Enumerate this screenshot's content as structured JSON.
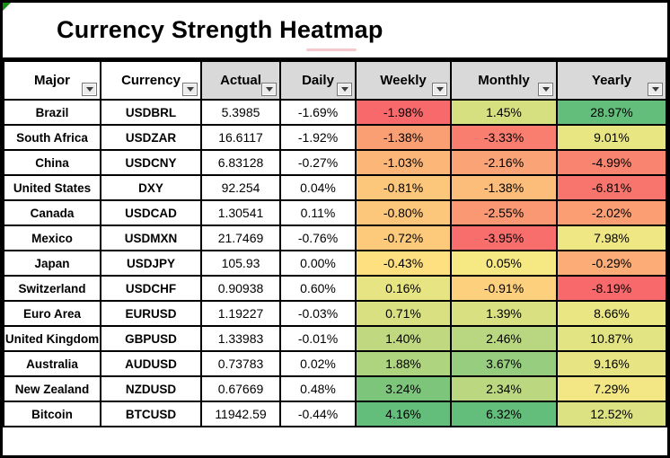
{
  "title": "Currency Strength Heatmap",
  "header": {
    "columns": [
      {
        "label": "Major",
        "bg": "#ffffff"
      },
      {
        "label": "Currency",
        "bg": "#ffffff"
      },
      {
        "label": "Actual",
        "bg": "#d9d9d9"
      },
      {
        "label": "Daily",
        "bg": "#d9d9d9"
      },
      {
        "label": "Weekly",
        "bg": "#d9d9d9"
      },
      {
        "label": "Monthly",
        "bg": "#d9d9d9"
      },
      {
        "label": "Yearly",
        "bg": "#d9d9d9"
      }
    ]
  },
  "rows": [
    {
      "major": "Brazil",
      "currency": "USDBRL",
      "actual": "5.3985",
      "daily": "-1.69%",
      "weekly": {
        "value": "-1.98%",
        "bg": "#f8696b"
      },
      "monthly": {
        "value": "1.45%",
        "bg": "#d7e081"
      },
      "yearly": {
        "value": "28.97%",
        "bg": "#63be7b"
      }
    },
    {
      "major": "South Africa",
      "currency": "USDZAR",
      "actual": "16.6117",
      "daily": "-1.92%",
      "weekly": {
        "value": "-1.38%",
        "bg": "#fa9e74"
      },
      "monthly": {
        "value": "-3.33%",
        "bg": "#f97e6f"
      },
      "yearly": {
        "value": "9.01%",
        "bg": "#e8e583"
      }
    },
    {
      "major": "China",
      "currency": "USDCNY",
      "actual": "6.83128",
      "daily": "-0.27%",
      "weekly": {
        "value": "-1.03%",
        "bg": "#fbb678"
      },
      "monthly": {
        "value": "-2.16%",
        "bg": "#faa376"
      },
      "yearly": {
        "value": "-4.99%",
        "bg": "#f9846f"
      }
    },
    {
      "major": "United States",
      "currency": "DXY",
      "actual": "92.254",
      "daily": "0.04%",
      "weekly": {
        "value": "-0.81%",
        "bg": "#fcc67b"
      },
      "monthly": {
        "value": "-1.38%",
        "bg": "#fcbd7a"
      },
      "yearly": {
        "value": "-6.81%",
        "bg": "#f8756d"
      }
    },
    {
      "major": "Canada",
      "currency": "USDCAD",
      "actual": "1.30541",
      "daily": "0.11%",
      "weekly": {
        "value": "-0.80%",
        "bg": "#fcc77b"
      },
      "monthly": {
        "value": "-2.55%",
        "bg": "#fa9873"
      },
      "yearly": {
        "value": "-2.02%",
        "bg": "#fb9e74"
      }
    },
    {
      "major": "Mexico",
      "currency": "USDMXN",
      "actual": "21.7469",
      "daily": "-0.76%",
      "weekly": {
        "value": "-0.72%",
        "bg": "#fdca7c"
      },
      "monthly": {
        "value": "-3.95%",
        "bg": "#f86e6c"
      },
      "yearly": {
        "value": "7.98%",
        "bg": "#efe684"
      }
    },
    {
      "major": "Japan",
      "currency": "USDJPY",
      "actual": "105.93",
      "daily": "0.00%",
      "weekly": {
        "value": "-0.43%",
        "bg": "#fee081"
      },
      "monthly": {
        "value": "0.05%",
        "bg": "#f6e883"
      },
      "yearly": {
        "value": "-0.29%",
        "bg": "#fbac77"
      }
    },
    {
      "major": "Switzerland",
      "currency": "USDCHF",
      "actual": "0.90938",
      "daily": "0.60%",
      "weekly": {
        "value": "0.16%",
        "bg": "#e7e483"
      },
      "monthly": {
        "value": "-0.91%",
        "bg": "#fdd07e"
      },
      "yearly": {
        "value": "-8.19%",
        "bg": "#f8696b"
      }
    },
    {
      "major": "Euro Area",
      "currency": "EURUSD",
      "actual": "1.19227",
      "daily": "-0.03%",
      "weekly": {
        "value": "0.71%",
        "bg": "#d8e082"
      },
      "monthly": {
        "value": "1.39%",
        "bg": "#d8e081"
      },
      "yearly": {
        "value": "8.66%",
        "bg": "#eae684"
      }
    },
    {
      "major": "United Kingdom",
      "currency": "GBPUSD",
      "actual": "1.33983",
      "daily": "-0.01%",
      "weekly": {
        "value": "1.40%",
        "bg": "#c0d980"
      },
      "monthly": {
        "value": "2.46%",
        "bg": "#b8d780"
      },
      "yearly": {
        "value": "10.87%",
        "bg": "#e2e383"
      }
    },
    {
      "major": "Australia",
      "currency": "AUDUSD",
      "actual": "0.73783",
      "daily": "0.02%",
      "weekly": {
        "value": "1.88%",
        "bg": "#aed47f"
      },
      "monthly": {
        "value": "3.67%",
        "bg": "#96cd7e"
      },
      "yearly": {
        "value": "9.16%",
        "bg": "#e7e583"
      }
    },
    {
      "major": "New Zealand",
      "currency": "NZDUSD",
      "actual": "0.67669",
      "daily": "0.48%",
      "weekly": {
        "value": "3.24%",
        "bg": "#7ec57c"
      },
      "monthly": {
        "value": "2.34%",
        "bg": "#bbd880"
      },
      "yearly": {
        "value": "7.29%",
        "bg": "#f2e784"
      }
    },
    {
      "major": "Bitcoin",
      "currency": "BTCUSD",
      "actual": "11942.59",
      "daily": "-0.44%",
      "weekly": {
        "value": "4.16%",
        "bg": "#63be7b"
      },
      "monthly": {
        "value": "6.32%",
        "bg": "#63be7b"
      },
      "yearly": {
        "value": "12.52%",
        "bg": "#dce182"
      }
    }
  ],
  "colors": {
    "scale_min_red": "#f8696b",
    "scale_mid_yellow": "#ffeb84",
    "scale_max_green": "#63be7b",
    "header_gray": "#d9d9d9",
    "grid_border": "#000000",
    "corner_triangle_green": "#149414",
    "stray_mark_pink": "#f7c9ce"
  },
  "icons": {
    "filter_dropdown": "chevron-down"
  },
  "chart_data": {
    "type": "heatmap",
    "title": "Currency Strength Heatmap",
    "columns": [
      "Major",
      "Currency",
      "Actual",
      "Daily",
      "Weekly",
      "Monthly",
      "Yearly"
    ],
    "colored_columns": [
      "Weekly",
      "Monthly",
      "Yearly"
    ],
    "color_scale": {
      "min": "#f8696b",
      "mid": "#ffeb84",
      "max": "#63be7b",
      "note": "red = weakest, yellow = mid, green = strongest; scaled per column"
    },
    "rows": [
      {
        "major": "Brazil",
        "currency": "USDBRL",
        "actual": 5.3985,
        "daily_pct": -1.69,
        "weekly_pct": -1.98,
        "monthly_pct": 1.45,
        "yearly_pct": 28.97
      },
      {
        "major": "South Africa",
        "currency": "USDZAR",
        "actual": 16.6117,
        "daily_pct": -1.92,
        "weekly_pct": -1.38,
        "monthly_pct": -3.33,
        "yearly_pct": 9.01
      },
      {
        "major": "China",
        "currency": "USDCNY",
        "actual": 6.83128,
        "daily_pct": -0.27,
        "weekly_pct": -1.03,
        "monthly_pct": -2.16,
        "yearly_pct": -4.99
      },
      {
        "major": "United States",
        "currency": "DXY",
        "actual": 92.254,
        "daily_pct": 0.04,
        "weekly_pct": -0.81,
        "monthly_pct": -1.38,
        "yearly_pct": -6.81
      },
      {
        "major": "Canada",
        "currency": "USDCAD",
        "actual": 1.30541,
        "daily_pct": 0.11,
        "weekly_pct": -0.8,
        "monthly_pct": -2.55,
        "yearly_pct": -2.02
      },
      {
        "major": "Mexico",
        "currency": "USDMXN",
        "actual": 21.7469,
        "daily_pct": -0.76,
        "weekly_pct": -0.72,
        "monthly_pct": -3.95,
        "yearly_pct": 7.98
      },
      {
        "major": "Japan",
        "currency": "USDJPY",
        "actual": 105.93,
        "daily_pct": 0.0,
        "weekly_pct": -0.43,
        "monthly_pct": 0.05,
        "yearly_pct": -0.29
      },
      {
        "major": "Switzerland",
        "currency": "USDCHF",
        "actual": 0.90938,
        "daily_pct": 0.6,
        "weekly_pct": 0.16,
        "monthly_pct": -0.91,
        "yearly_pct": -8.19
      },
      {
        "major": "Euro Area",
        "currency": "EURUSD",
        "actual": 1.19227,
        "daily_pct": -0.03,
        "weekly_pct": 0.71,
        "monthly_pct": 1.39,
        "yearly_pct": 8.66
      },
      {
        "major": "United Kingdom",
        "currency": "GBPUSD",
        "actual": 1.33983,
        "daily_pct": -0.01,
        "weekly_pct": 1.4,
        "monthly_pct": 2.46,
        "yearly_pct": 10.87
      },
      {
        "major": "Australia",
        "currency": "AUDUSD",
        "actual": 0.73783,
        "daily_pct": 0.02,
        "weekly_pct": 1.88,
        "monthly_pct": 3.67,
        "yearly_pct": 9.16
      },
      {
        "major": "New Zealand",
        "currency": "NZDUSD",
        "actual": 0.67669,
        "daily_pct": 0.48,
        "weekly_pct": 3.24,
        "monthly_pct": 2.34,
        "yearly_pct": 7.29
      },
      {
        "major": "Bitcoin",
        "currency": "BTCUSD",
        "actual": 11942.59,
        "daily_pct": -0.44,
        "weekly_pct": 4.16,
        "monthly_pct": 6.32,
        "yearly_pct": 12.52
      }
    ]
  }
}
